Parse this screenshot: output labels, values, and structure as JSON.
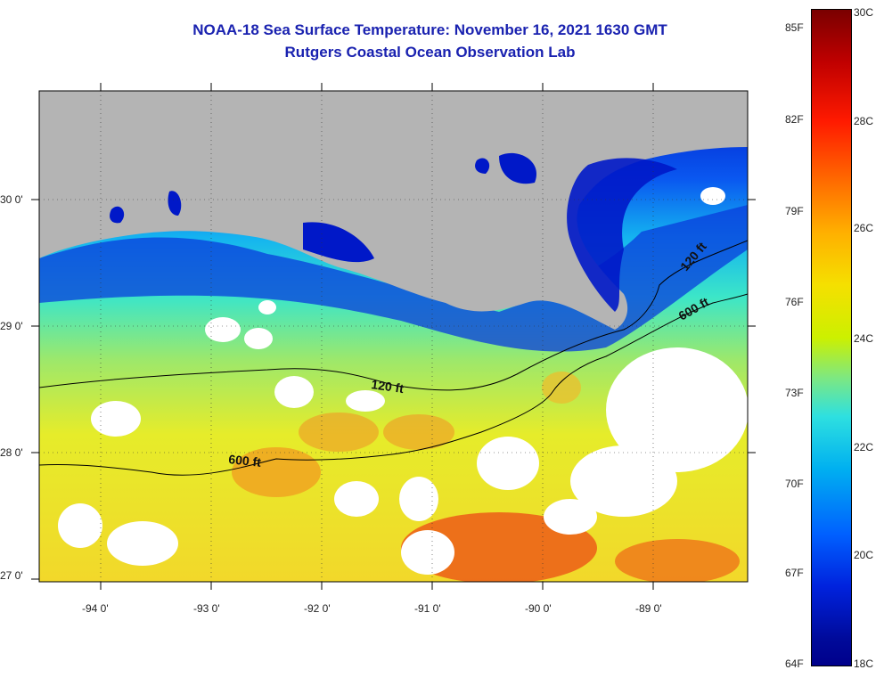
{
  "header": {
    "title": "NOAA-18 Sea Surface Temperature:  November 16, 2021 1630 GMT",
    "subtitle": "Rutgers Coastal Ocean Observation Lab"
  },
  "map": {
    "lat_labels": [
      "30 0'",
      "29 0'",
      "28 0'",
      "27 0'"
    ],
    "lon_labels": [
      "-94 0'",
      "-93 0'",
      "-92 0'",
      "-91 0'",
      "-90 0'",
      "-89 0'"
    ],
    "contour_labels": [
      "120 ft",
      "600 ft",
      "120 ft",
      "600 ft"
    ],
    "colors": {
      "land": "#b4b4b4",
      "cloud": "#ffffff",
      "coastal": "#0018c8"
    }
  },
  "colorbar": {
    "fahrenheit": [
      "85F",
      "82F",
      "79F",
      "76F",
      "73F",
      "70F",
      "67F",
      "64F"
    ],
    "celsius": [
      "30C",
      "28C",
      "26C",
      "24C",
      "22C",
      "20C",
      "18C"
    ]
  }
}
